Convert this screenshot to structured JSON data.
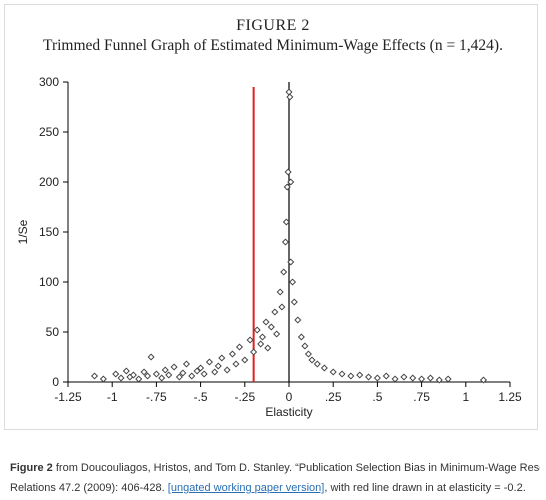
{
  "figure": {
    "heading": "FIGURE 2",
    "title": "Trimmed Funnel Graph of Estimated Minimum-Wage Effects (n = 1,424)."
  },
  "chart_data": {
    "type": "scatter",
    "title": "Trimmed Funnel Graph of Estimated Minimum-Wage Effects (n = 1,424).",
    "xlabel": "Elasticity",
    "ylabel": "1/Se",
    "xlim": [
      -1.25,
      1.25
    ],
    "ylim": [
      0,
      300
    ],
    "xticks": [
      "-1.25",
      "-1",
      "-.75",
      "-.5",
      "-.25",
      "0",
      ".25",
      ".5",
      ".75",
      "1",
      "1.25"
    ],
    "yticks": [
      "0",
      "50",
      "100",
      "150",
      "200",
      "250",
      "300"
    ],
    "grid": false,
    "marker_color": "#444444",
    "vertical_lines": [
      {
        "x": 0,
        "color": "#000000"
      },
      {
        "x": -0.2,
        "color": "#e02020",
        "ymax": 295
      }
    ],
    "points": [
      [
        -1.1,
        6
      ],
      [
        -1.05,
        3
      ],
      [
        -0.98,
        8
      ],
      [
        -0.95,
        4
      ],
      [
        -0.92,
        11
      ],
      [
        -0.9,
        5
      ],
      [
        -0.88,
        7
      ],
      [
        -0.85,
        3
      ],
      [
        -0.82,
        10
      ],
      [
        -0.8,
        6
      ],
      [
        -0.78,
        25
      ],
      [
        -0.75,
        8
      ],
      [
        -0.72,
        4
      ],
      [
        -0.7,
        12
      ],
      [
        -0.68,
        7
      ],
      [
        -0.65,
        15
      ],
      [
        -0.62,
        5
      ],
      [
        -0.6,
        9
      ],
      [
        -0.58,
        18
      ],
      [
        -0.55,
        6
      ],
      [
        -0.52,
        11
      ],
      [
        -0.5,
        14
      ],
      [
        -0.48,
        8
      ],
      [
        -0.45,
        20
      ],
      [
        -0.42,
        10
      ],
      [
        -0.4,
        16
      ],
      [
        -0.38,
        24
      ],
      [
        -0.35,
        12
      ],
      [
        -0.32,
        28
      ],
      [
        -0.3,
        18
      ],
      [
        -0.28,
        35
      ],
      [
        -0.25,
        22
      ],
      [
        -0.22,
        42
      ],
      [
        -0.2,
        30
      ],
      [
        -0.18,
        52
      ],
      [
        -0.16,
        38
      ],
      [
        -0.15,
        45
      ],
      [
        -0.13,
        60
      ],
      [
        -0.12,
        34
      ],
      [
        -0.1,
        55
      ],
      [
        -0.08,
        70
      ],
      [
        -0.07,
        48
      ],
      [
        -0.05,
        90
      ],
      [
        -0.04,
        75
      ],
      [
        -0.03,
        110
      ],
      [
        -0.02,
        140
      ],
      [
        -0.015,
        160
      ],
      [
        -0.01,
        195
      ],
      [
        -0.005,
        210
      ],
      [
        0.0,
        290
      ],
      [
        0.005,
        285
      ],
      [
        0.01,
        200
      ],
      [
        0.01,
        120
      ],
      [
        0.02,
        100
      ],
      [
        0.03,
        80
      ],
      [
        0.05,
        62
      ],
      [
        0.07,
        45
      ],
      [
        0.09,
        36
      ],
      [
        0.11,
        28
      ],
      [
        0.13,
        22
      ],
      [
        0.16,
        18
      ],
      [
        0.2,
        14
      ],
      [
        0.25,
        10
      ],
      [
        0.3,
        8
      ],
      [
        0.35,
        6
      ],
      [
        0.4,
        7
      ],
      [
        0.45,
        5
      ],
      [
        0.5,
        4
      ],
      [
        0.55,
        6
      ],
      [
        0.6,
        3
      ],
      [
        0.65,
        5
      ],
      [
        0.7,
        4
      ],
      [
        0.75,
        3
      ],
      [
        0.8,
        4
      ],
      [
        0.85,
        2
      ],
      [
        0.9,
        3
      ],
      [
        1.1,
        2
      ]
    ]
  },
  "caption": {
    "figure_label": "Figure 2",
    "text_1": " from Doucouliagos, Hristos, and Tom D. Stanley. “Publication Selection Bias in Minimum-Wage Research? A",
    "text_2": "Relations 47.2 (2009): 406-428. ",
    "link_text": "[ungated working paper version]",
    "text_3": ", with red line drawn in at elasticity = -0.2."
  }
}
